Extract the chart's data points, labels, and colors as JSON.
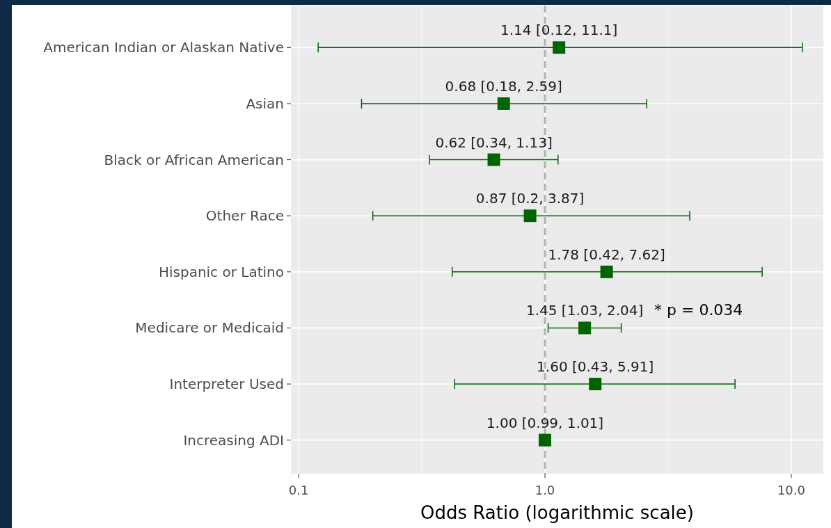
{
  "chart_data": {
    "type": "scatter",
    "orientation": "horizontal",
    "xlabel": "Odds Ratio (logarithmic scale)",
    "categories": [
      "American Indian or Alaskan Native",
      "Asian",
      "Black or African American",
      "Other Race",
      "Hispanic or Latino",
      "Medicare or Medicaid",
      "Interpreter Used",
      "Increasing ADI"
    ],
    "values": [
      1.14,
      0.68,
      0.62,
      0.87,
      1.78,
      1.45,
      1.6,
      1.0
    ],
    "errors": [
      [
        0.12,
        11.1
      ],
      [
        0.18,
        2.59
      ],
      [
        0.34,
        1.13
      ],
      [
        0.2,
        3.87
      ],
      [
        0.42,
        7.62
      ],
      [
        1.03,
        2.04
      ],
      [
        0.43,
        5.91
      ],
      [
        0.99,
        1.01
      ]
    ],
    "value_labels": [
      "1.14 [0.12, 11.1]",
      "0.68 [0.18, 2.59]",
      "0.62 [0.34, 1.13]",
      "0.87 [0.2, 3.87]",
      "1.78 [0.42, 7.62]",
      "1.45 [1.03, 2.04]",
      "1.60 [0.43, 5.91]",
      "1.00 [0.99, 1.01]"
    ],
    "color": "#006400",
    "marker": "square",
    "log": "x",
    "grid": true,
    "xlim": [
      0.093,
      13.5
    ],
    "xticks": [
      {
        "value": 0.1,
        "label": "0.1"
      },
      {
        "value": 0.3162,
        "label": null
      },
      {
        "value": 1,
        "label": "1.0"
      },
      {
        "value": 3.162,
        "label": null
      },
      {
        "value": 10,
        "label": "10.0"
      }
    ],
    "ref_lines": [
      {
        "axis": "x",
        "value": 1,
        "color": "#b3b3b3",
        "line_style": "dashed"
      }
    ],
    "annotations": [
      "* p = 0.034"
    ]
  }
}
